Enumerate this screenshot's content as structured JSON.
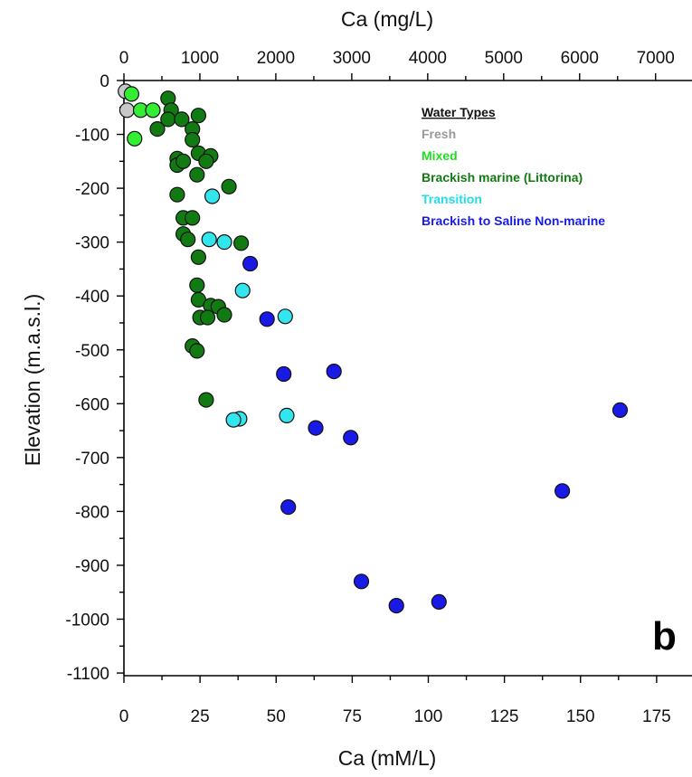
{
  "chart_data": {
    "type": "scatter",
    "top_axis_label": "Ca (mg/L)",
    "top_ticks": [
      "0",
      "1000",
      "2000",
      "3000",
      "4000",
      "5000",
      "6000",
      "7000"
    ],
    "xlabel": "Ca (mM/L)",
    "x_ticks": [
      "0",
      "25",
      "50",
      "75",
      "100",
      "125",
      "150",
      "175"
    ],
    "ylabel": "Elevation (m.a.s.l.)",
    "y_ticks": [
      "0",
      "-100",
      "-200",
      "-300",
      "-400",
      "-500",
      "-600",
      "-700",
      "-800",
      "-900",
      "-1000",
      "-1100"
    ],
    "xlim": [
      0,
      180
    ],
    "ylim": [
      -1100,
      0
    ],
    "panel_label": "b",
    "legend_title": "Water Types",
    "legend_position": "top-right",
    "series": [
      {
        "name": "Fresh",
        "color": "#c8c8c8",
        "points": [
          [
            0.5,
            -20
          ],
          [
            1,
            -55
          ]
        ]
      },
      {
        "name": "Mixed",
        "color": "#33ee33",
        "points": [
          [
            2.5,
            -25
          ],
          [
            5.5,
            -55
          ],
          [
            9.5,
            -55
          ],
          [
            3.5,
            -108
          ]
        ]
      },
      {
        "name": "Brackish marine (Littorina)",
        "color": "#127a12",
        "points": [
          [
            14.5,
            -33
          ],
          [
            15.5,
            -55
          ],
          [
            14.5,
            -72
          ],
          [
            19,
            -72
          ],
          [
            24.5,
            -65
          ],
          [
            11,
            -90
          ],
          [
            22.5,
            -90
          ],
          [
            22.5,
            -110
          ],
          [
            24.5,
            -135
          ],
          [
            28.5,
            -140
          ],
          [
            27,
            -150
          ],
          [
            17.5,
            -145
          ],
          [
            17.5,
            -157
          ],
          [
            19.5,
            -150
          ],
          [
            24,
            -175
          ],
          [
            34.5,
            -197
          ],
          [
            17.5,
            -212
          ],
          [
            19.5,
            -255
          ],
          [
            22.5,
            -255
          ],
          [
            19.5,
            -285
          ],
          [
            21,
            -295
          ],
          [
            38.5,
            -302
          ],
          [
            24.5,
            -328
          ],
          [
            24,
            -380
          ],
          [
            24.5,
            -407
          ],
          [
            28.5,
            -418
          ],
          [
            31,
            -420
          ],
          [
            33,
            -435
          ],
          [
            25,
            -440
          ],
          [
            27.5,
            -440
          ],
          [
            22.5,
            -493
          ],
          [
            24,
            -502
          ],
          [
            27,
            -593
          ]
        ]
      },
      {
        "name": "Transition",
        "color": "#33e6ee",
        "points": [
          [
            29,
            -215
          ],
          [
            28,
            -295
          ],
          [
            33,
            -300
          ],
          [
            39,
            -390
          ],
          [
            53,
            -438
          ],
          [
            38,
            -628
          ],
          [
            36,
            -630
          ],
          [
            53.5,
            -622
          ]
        ]
      },
      {
        "name": "Brackish to Saline Non-marine",
        "color": "#1a1ae6",
        "points": [
          [
            41.5,
            -340
          ],
          [
            47,
            -443
          ],
          [
            52.5,
            -545
          ],
          [
            69,
            -540
          ],
          [
            163,
            -612
          ],
          [
            63,
            -645
          ],
          [
            74.5,
            -663
          ],
          [
            144,
            -762
          ],
          [
            54,
            -792
          ],
          [
            78,
            -930
          ],
          [
            89.5,
            -975
          ],
          [
            103.5,
            -968
          ]
        ]
      }
    ]
  }
}
